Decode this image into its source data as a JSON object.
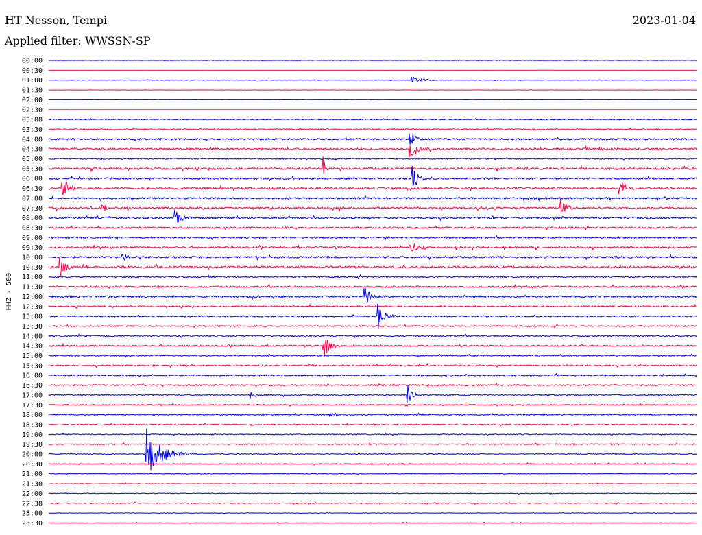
{
  "header": {
    "station": "HT Nesson, Tempi",
    "filter": "Applied filter: WWSSN-SP",
    "date": "2023-01-04"
  },
  "colors": {
    "line_a": "#0000ee",
    "line_b": "#ff0044",
    "text": "#000000",
    "background": "#ffffff"
  },
  "chart_data": {
    "type": "line",
    "ylabel": "HHZ - 500",
    "y_tick_labels": [
      "00:00",
      "00:30",
      "01:00",
      "01:30",
      "02:00",
      "02:30",
      "03:00",
      "03:30",
      "04:00",
      "04:30",
      "05:00",
      "05:30",
      "06:00",
      "06:30",
      "07:00",
      "07:30",
      "08:00",
      "08:30",
      "09:00",
      "09:30",
      "10:00",
      "10:30",
      "11:00",
      "11:30",
      "12:00",
      "12:30",
      "13:00",
      "13:30",
      "14:00",
      "14:30",
      "15:00",
      "15:30",
      "16:00",
      "16:30",
      "17:00",
      "17:30",
      "18:00",
      "18:30",
      "19:00",
      "19:30",
      "20:00",
      "20:30",
      "21:00",
      "21:30",
      "22:00",
      "22:30",
      "23:00",
      "23:30"
    ],
    "series": [
      {
        "values": [
          0.15,
          0.05,
          0.2,
          0.1,
          0.05,
          0.05,
          0.35,
          0.5,
          0.7,
          0.85,
          0.5,
          0.85,
          0.75,
          0.9,
          0.7,
          0.8,
          0.8,
          0.7,
          0.7,
          0.75,
          0.8,
          0.85,
          0.6,
          0.7,
          0.75,
          0.6,
          0.55,
          0.55,
          0.6,
          0.6,
          0.5,
          0.55,
          0.55,
          0.6,
          0.5,
          0.45,
          0.5,
          0.5,
          0.4,
          0.45,
          0.35,
          0.35,
          0.25,
          0.25,
          0.3,
          0.35,
          0.2,
          0.25
        ]
      }
    ],
    "events": [
      {
        "row": 2,
        "minute": 16.8,
        "amp": 0.3,
        "width": 0.6
      },
      {
        "row": 8,
        "minute": 16.7,
        "amp": 1.2,
        "width": 0.25
      },
      {
        "row": 9,
        "minute": 16.7,
        "amp": 1.5,
        "width": 0.3
      },
      {
        "row": 11,
        "minute": 12.7,
        "amp": 1.3,
        "width": 0.1
      },
      {
        "row": 12,
        "minute": 16.8,
        "amp": 1.1,
        "width": 0.3
      },
      {
        "row": 13,
        "minute": 0.6,
        "amp": 1.2,
        "width": 0.3
      },
      {
        "row": 13,
        "minute": 26.4,
        "amp": 1.0,
        "width": 0.3
      },
      {
        "row": 15,
        "minute": 2.4,
        "amp": 0.6,
        "width": 0.3
      },
      {
        "row": 15,
        "minute": 23.7,
        "amp": 0.8,
        "width": 0.3
      },
      {
        "row": 16,
        "minute": 5.8,
        "amp": 0.9,
        "width": 0.3
      },
      {
        "row": 19,
        "minute": 16.7,
        "amp": 1.0,
        "width": 0.3
      },
      {
        "row": 20,
        "minute": 3.4,
        "amp": 0.5,
        "width": 0.3
      },
      {
        "row": 21,
        "minute": 0.5,
        "amp": 0.9,
        "width": 0.3
      },
      {
        "row": 24,
        "minute": 14.6,
        "amp": 1.0,
        "width": 0.35
      },
      {
        "row": 26,
        "minute": 15.2,
        "amp": 1.3,
        "width": 0.3
      },
      {
        "row": 29,
        "minute": 12.7,
        "amp": 1.3,
        "width": 0.3
      },
      {
        "row": 34,
        "minute": 16.6,
        "amp": 0.9,
        "width": 0.25
      },
      {
        "row": 34,
        "minute": 9.3,
        "amp": 0.35,
        "width": 0.2
      },
      {
        "row": 36,
        "minute": 13.0,
        "amp": 0.25,
        "width": 0.2
      },
      {
        "row": 40,
        "minute": 4.5,
        "amp": 2.3,
        "width": 0.7
      }
    ]
  }
}
